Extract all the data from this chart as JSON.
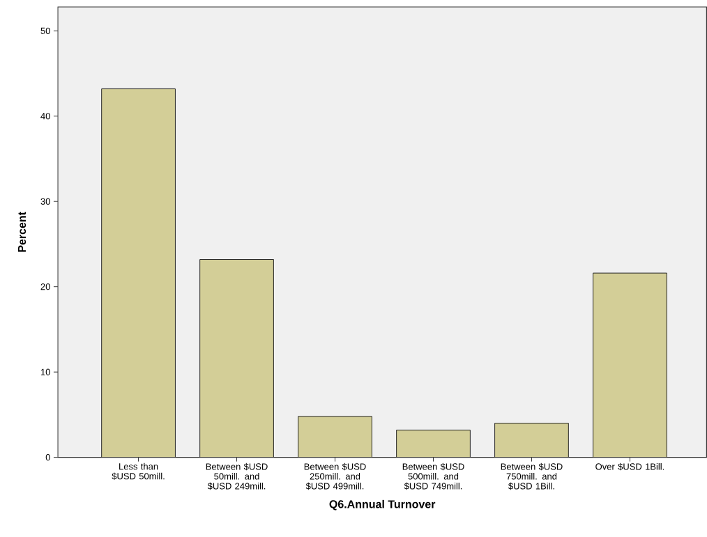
{
  "chart_data": {
    "type": "bar",
    "xlabel": "Q6.Annual Turnover",
    "ylabel": "Percent",
    "categories": [
      "Less than $USD 50mill.",
      "Between $USD 50mill. and $USD 249mill.",
      "Between $USD 250mill. and $USD 499mill.",
      "Between $USD 500mill. and $USD 749mill.",
      "Between $USD 750mill. and $USD 1Bill.",
      "Over $USD 1Bill."
    ],
    "values": [
      43.2,
      23.2,
      4.8,
      3.2,
      4.0,
      21.6
    ],
    "color": "#d3ce97",
    "ylim": [
      0,
      52.8
    ],
    "yticks": [
      0,
      10,
      20,
      30,
      40,
      50
    ]
  }
}
